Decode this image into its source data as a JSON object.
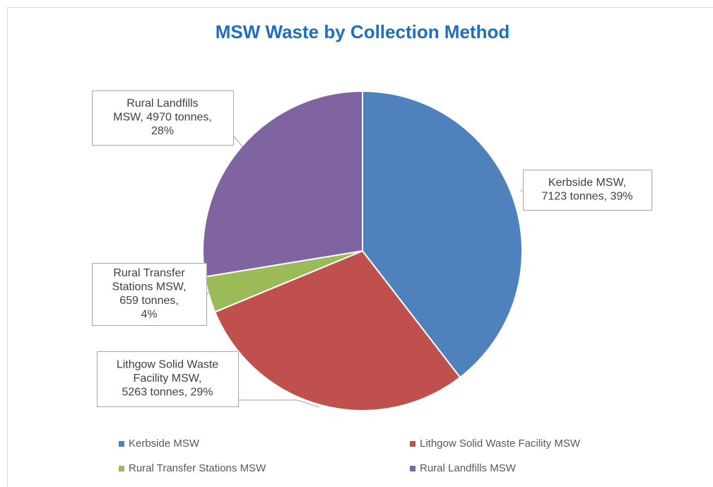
{
  "chart_data": {
    "type": "pie",
    "title": "MSW Waste by Collection Method",
    "categories": [
      "Kerbside MSW",
      "Lithgow Solid Waste Facility MSW",
      "Rural Transfer Stations MSW",
      "Rural Landfills MSW"
    ],
    "values": [
      7123,
      5263,
      659,
      4970
    ],
    "value_labels": [
      [
        "Kerbside MSW,",
        "7123 tonnes, 39%"
      ],
      [
        "Lithgow Solid Waste",
        "Facility MSW,",
        "5263 tonnes, 29%"
      ],
      [
        "Rural Transfer",
        "Stations MSW,",
        "659 tonnes,",
        "4%"
      ],
      [
        "Rural Landfills",
        "MSW, 4970 tonnes,",
        "28%"
      ]
    ],
    "colors": [
      "#4f81bd",
      "#c0504d",
      "#9bbb59",
      "#8064a2"
    ],
    "legend": "bottom"
  }
}
